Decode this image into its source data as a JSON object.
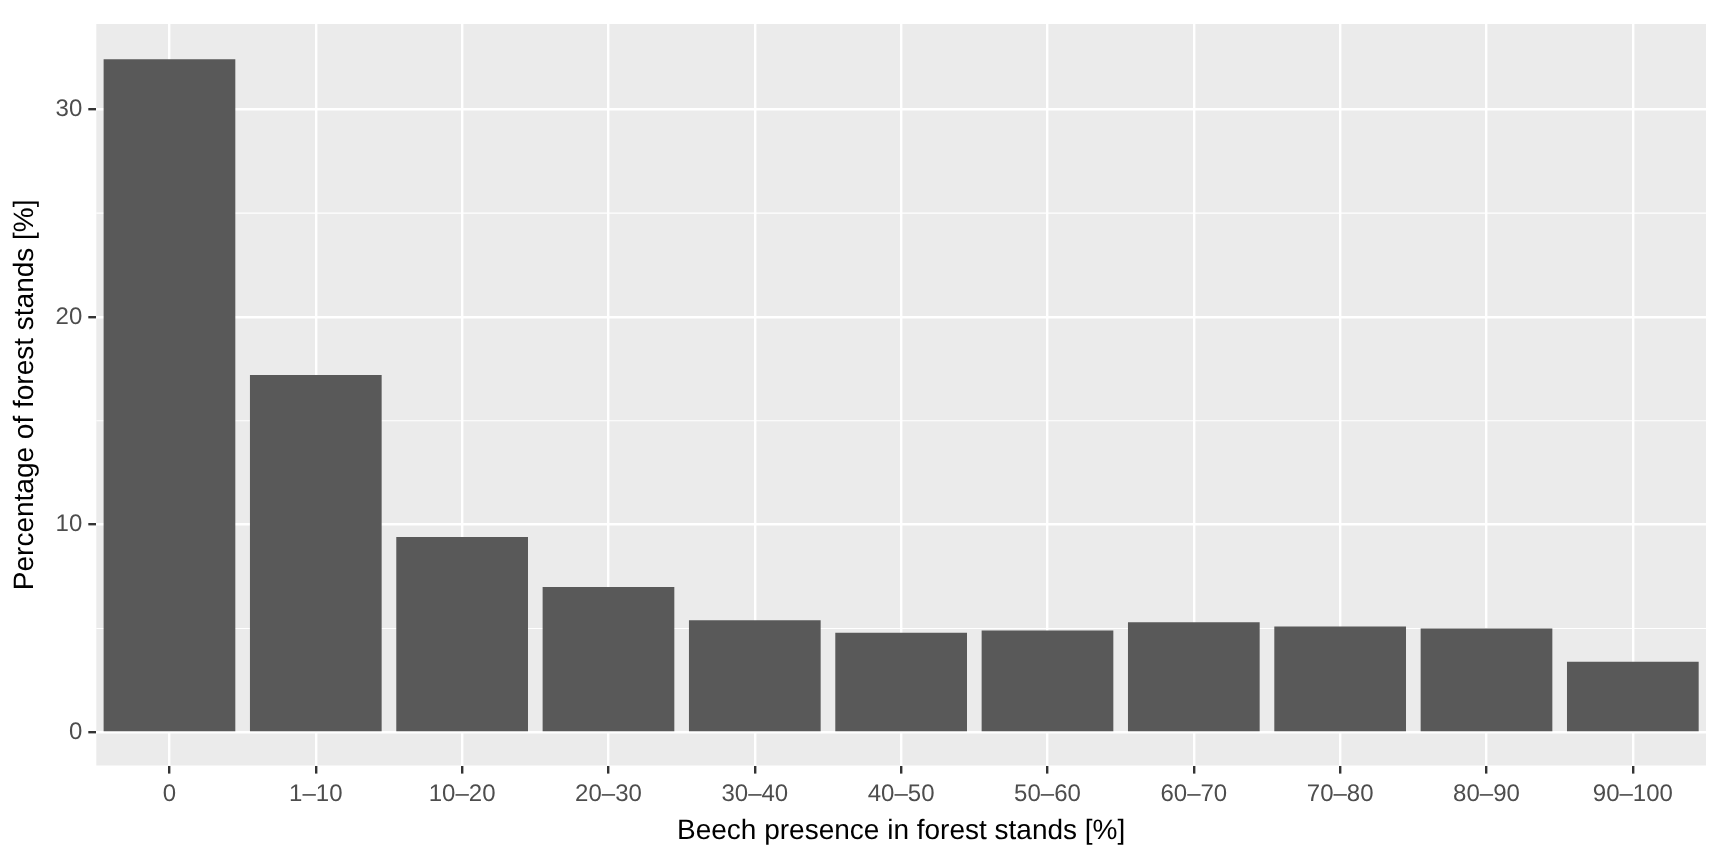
{
  "chart_data": {
    "type": "bar",
    "xlabel": "Beech presence in forest stands [%]",
    "ylabel": "Percentage of forest stands [%]",
    "categories": [
      "0",
      "1–10",
      "10–20",
      "20–30",
      "30–40",
      "40–50",
      "50–60",
      "60–70",
      "70–80",
      "80–90",
      "90–100"
    ],
    "values": [
      32.4,
      17.2,
      9.4,
      7.0,
      5.4,
      4.8,
      4.9,
      5.3,
      5.1,
      5.0,
      3.4
    ],
    "color": "#595959",
    "ylim": [
      -1.6,
      34.1
    ],
    "yticks": [
      0,
      10,
      20,
      30
    ],
    "grid": true,
    "legend": false
  }
}
